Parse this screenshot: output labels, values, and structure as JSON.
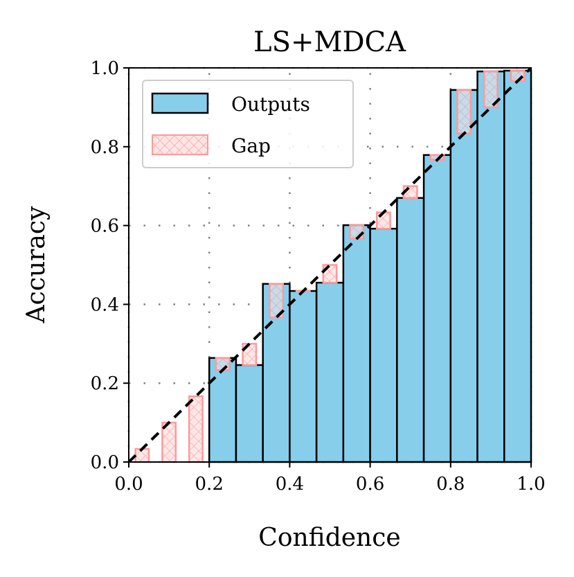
{
  "chart_data": {
    "type": "bar",
    "title": "LS+MDCA",
    "xlabel": "Confidence",
    "ylabel": "Accuracy",
    "xlim": [
      0,
      1
    ],
    "ylim": [
      0,
      1
    ],
    "xticks": [
      "0.0",
      "0.2",
      "0.4",
      "0.6",
      "0.8",
      "1.0"
    ],
    "yticks": [
      "0.0",
      "0.2",
      "0.4",
      "0.6",
      "0.8",
      "1.0"
    ],
    "grid": true,
    "legend_placement": "top-left",
    "n_bins": 15,
    "series": [
      {
        "name": "Outputs",
        "color": "#87CEEB",
        "values": [
          0,
          0,
          0,
          0.264,
          0.246,
          0.452,
          0.434,
          0.455,
          0.601,
          0.592,
          0.67,
          0.779,
          0.944,
          0.991,
          0.993
        ]
      },
      {
        "name": "Gap",
        "color": "#FF9999",
        "bin_centers": [
          0.0333,
          0.1,
          0.1667,
          0.2333,
          0.3,
          0.3667,
          0.4333,
          0.5,
          0.5667,
          0.6333,
          0.7,
          0.7667,
          0.8333,
          0.9,
          0.9667
        ]
      }
    ],
    "reference_line": "y = x (dashed)"
  }
}
